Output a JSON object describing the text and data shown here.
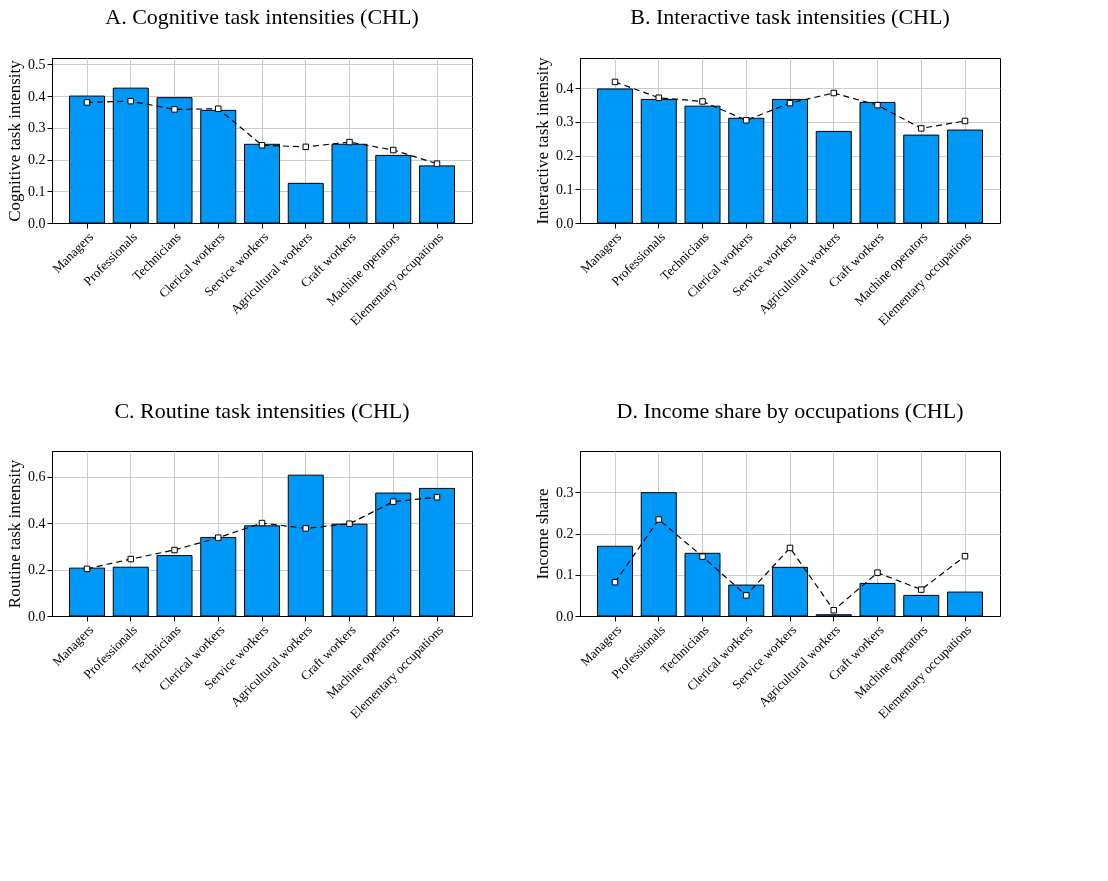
{
  "chart_data": [
    {
      "type": "bar",
      "title": "A. Cognitive task intensities (CHL)",
      "ylabel": "Cognitive task intensity",
      "categories": [
        "Managers",
        "Professionals",
        "Technicians",
        "Clerical workers",
        "Service workers",
        "Agricultural workers",
        "Craft workers",
        "Machine operators",
        "Elementary occupations"
      ],
      "ylim": [
        0,
        0.52
      ],
      "yticks": [
        {
          "value": 0,
          "label": "0.0"
        },
        {
          "value": 0.1,
          "label": "0.1"
        },
        {
          "value": 0.2,
          "label": "0.2"
        },
        {
          "value": 0.3,
          "label": "0.3"
        },
        {
          "value": 0.4,
          "label": "0.4"
        },
        {
          "value": 0.5,
          "label": "0.5"
        }
      ],
      "grid": true,
      "series": [
        {
          "type": "bar",
          "color": "#0098f6",
          "values": [
            0.4,
            0.425,
            0.395,
            0.355,
            0.248,
            0.125,
            0.248,
            0.213,
            0.18
          ]
        },
        {
          "type": "line",
          "color": "#000000",
          "marker": "square",
          "line_style": "dashed",
          "values": [
            0.38,
            0.384,
            0.358,
            0.36,
            0.245,
            0.24,
            0.255,
            0.23,
            0.187
          ]
        }
      ]
    },
    {
      "type": "bar",
      "title": "B. Interactive task intensities (CHL)",
      "ylabel": "Interactive task intensity",
      "categories": [
        "Managers",
        "Professionals",
        "Technicians",
        "Clerical workers",
        "Service workers",
        "Agricultural workers",
        "Craft workers",
        "Machine operators",
        "Elementary occupations"
      ],
      "ylim": [
        0,
        0.49
      ],
      "yticks": [
        {
          "value": 0,
          "label": "0.0"
        },
        {
          "value": 0.1,
          "label": "0.1"
        },
        {
          "value": 0.2,
          "label": "0.2"
        },
        {
          "value": 0.3,
          "label": "0.3"
        },
        {
          "value": 0.4,
          "label": "0.4"
        }
      ],
      "grid": true,
      "series": [
        {
          "type": "bar",
          "color": "#0098f6",
          "values": [
            0.398,
            0.367,
            0.347,
            0.311,
            0.367,
            0.272,
            0.358,
            0.261,
            0.276
          ]
        },
        {
          "type": "line",
          "color": "#000000",
          "marker": "square",
          "line_style": "dashed",
          "values": [
            0.419,
            0.372,
            0.361,
            0.305,
            0.356,
            0.386,
            0.35,
            0.281,
            0.303
          ]
        }
      ]
    },
    {
      "type": "bar",
      "title": "C. Routine task intensities (CHL)",
      "ylabel": "Routine task intensity",
      "categories": [
        "Managers",
        "Professionals",
        "Technicians",
        "Clerical workers",
        "Service workers",
        "Agricultural workers",
        "Craft workers",
        "Machine operators",
        "Elementary occupations"
      ],
      "ylim": [
        0,
        0.71
      ],
      "yticks": [
        {
          "value": 0,
          "label": "0.0"
        },
        {
          "value": 0.2,
          "label": "0.2"
        },
        {
          "value": 0.4,
          "label": "0.4"
        },
        {
          "value": 0.6,
          "label": "0.6"
        }
      ],
      "grid": true,
      "series": [
        {
          "type": "bar",
          "color": "#0098f6",
          "values": [
            0.206,
            0.21,
            0.26,
            0.338,
            0.388,
            0.606,
            0.395,
            0.529,
            0.549
          ]
        },
        {
          "type": "line",
          "color": "#000000",
          "marker": "square",
          "line_style": "dashed",
          "values": [
            0.203,
            0.245,
            0.284,
            0.337,
            0.4,
            0.377,
            0.397,
            0.492,
            0.511
          ]
        }
      ]
    },
    {
      "type": "bar",
      "title": "D. Income share by occupations (CHL)",
      "ylabel": "Income share",
      "categories": [
        "Managers",
        "Professionals",
        "Technicians",
        "Clerical workers",
        "Service workers",
        "Agricultural workers",
        "Craft workers",
        "Machine operators",
        "Elementary occupations"
      ],
      "ylim": [
        0,
        0.4
      ],
      "yticks": [
        {
          "value": 0,
          "label": "0.0"
        },
        {
          "value": 0.1,
          "label": "0.1"
        },
        {
          "value": 0.2,
          "label": "0.2"
        },
        {
          "value": 0.3,
          "label": "0.3"
        }
      ],
      "grid": true,
      "series": [
        {
          "type": "bar",
          "color": "#0098f6",
          "values": [
            0.169,
            0.299,
            0.152,
            0.075,
            0.118,
            0.003,
            0.079,
            0.05,
            0.058
          ]
        },
        {
          "type": "line",
          "color": "#000000",
          "marker": "square",
          "line_style": "dashed",
          "values": [
            0.082,
            0.234,
            0.144,
            0.05,
            0.165,
            0.014,
            0.105,
            0.064,
            0.145
          ]
        }
      ]
    }
  ]
}
